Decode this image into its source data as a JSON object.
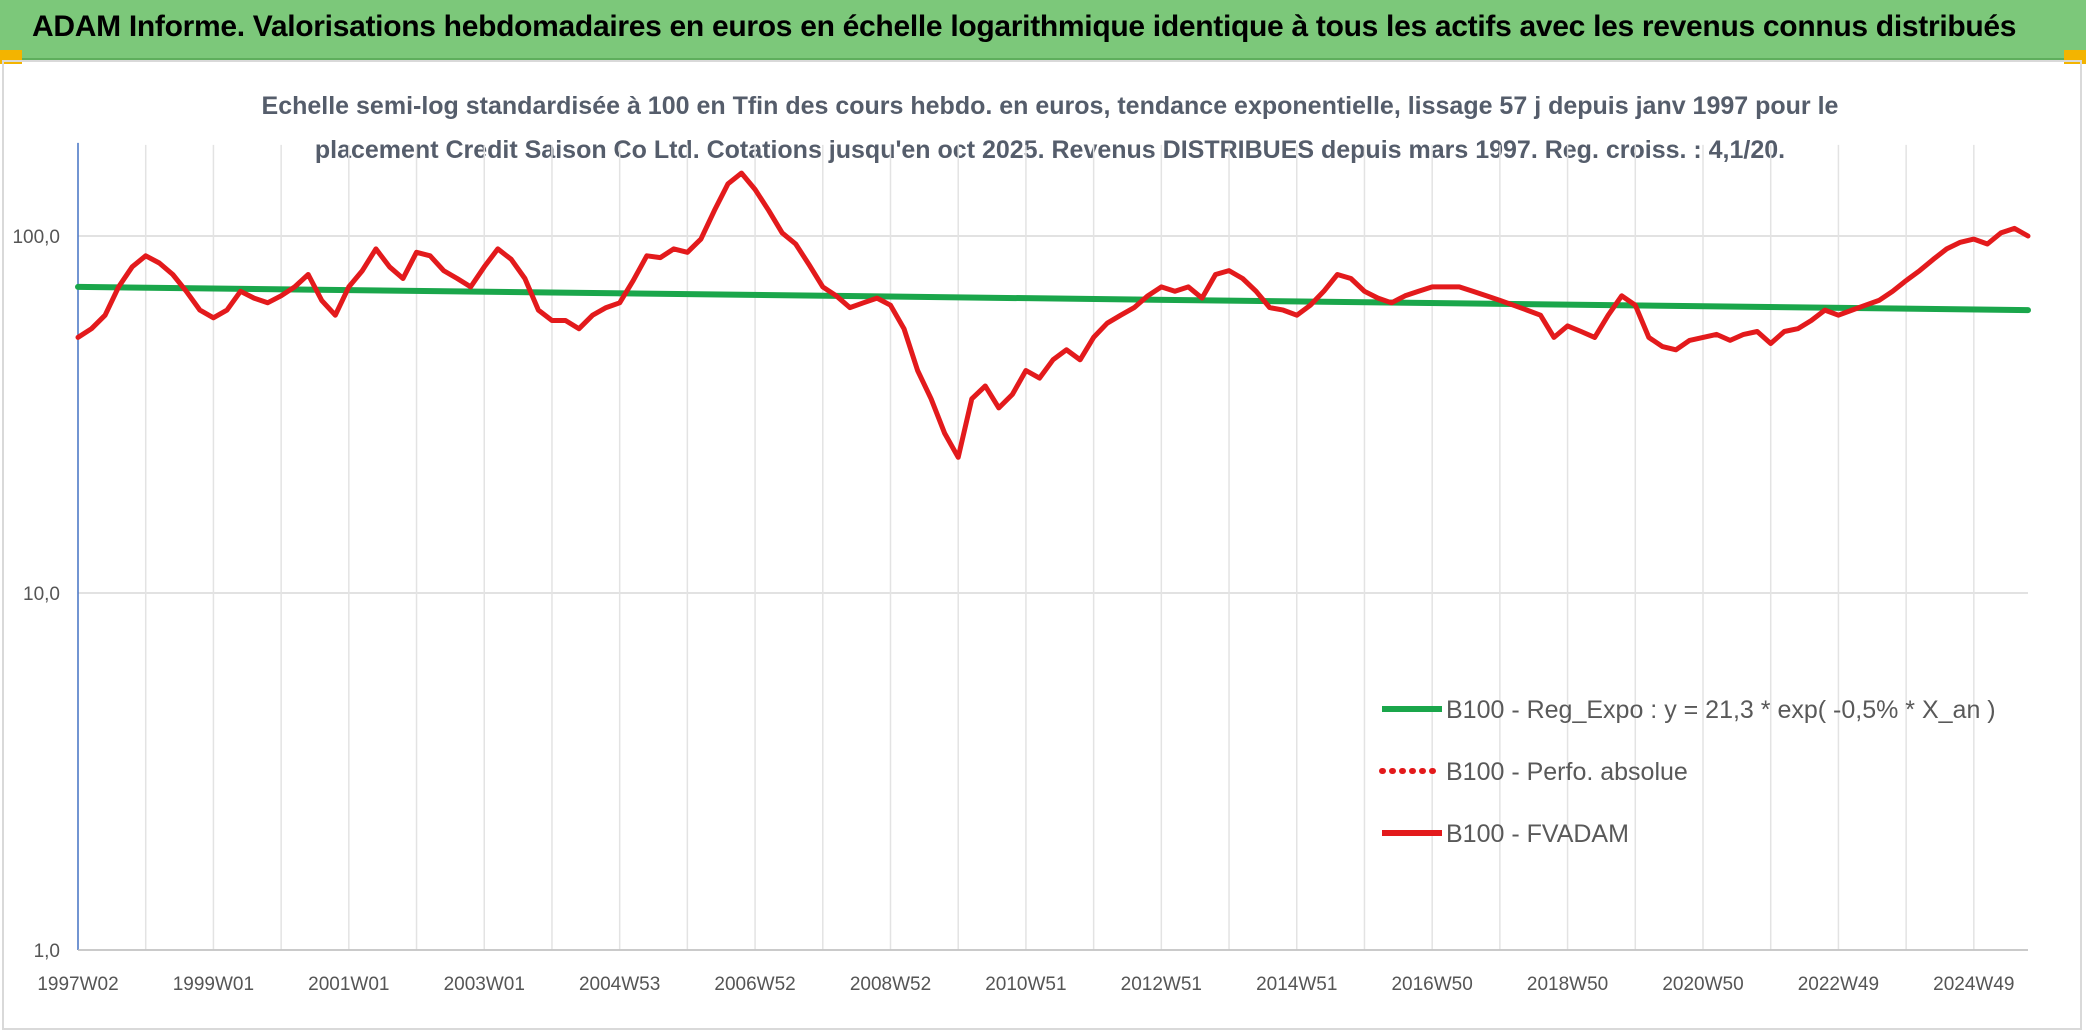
{
  "banner": {
    "title": "ADAM Informe. Valorisations hebdomadaires en euros en échelle logarithmique identique à tous les actifs avec les revenus connus distribués",
    "background": "#7cc87a"
  },
  "chart_data": {
    "type": "line",
    "scale": "log",
    "title_line1": "Echelle semi-log standardisée à 100 en Tfin des cours hebdo. en euros, tendance exponentielle, lissage 57 j depuis janv 1997 pour le",
    "title_line2": "placement Credit Saison Co Ltd. Cotations jusqu'en oct 2025. Revenus DISTRIBUES depuis mars 1997. Reg. croiss. : 4,1/20.",
    "x_start_year": 1997.0,
    "x_end_year": 2025.8,
    "ylim": [
      1,
      180
    ],
    "y_ticks": [
      {
        "value": 1,
        "label": "1,0"
      },
      {
        "value": 10,
        "label": "10,0"
      },
      {
        "value": 100,
        "label": "100,0"
      }
    ],
    "x_ticks": [
      {
        "year": 1997.0,
        "label": "1997W02"
      },
      {
        "year": 1999.0,
        "label": "1999W01"
      },
      {
        "year": 2001.0,
        "label": "2001W01"
      },
      {
        "year": 2003.0,
        "label": "2003W01"
      },
      {
        "year": 2005.0,
        "label": "2004W53"
      },
      {
        "year": 2007.0,
        "label": "2006W52"
      },
      {
        "year": 2009.0,
        "label": "2008W52"
      },
      {
        "year": 2011.0,
        "label": "2010W51"
      },
      {
        "year": 2013.0,
        "label": "2012W51"
      },
      {
        "year": 2015.0,
        "label": "2014W51"
      },
      {
        "year": 2017.0,
        "label": "2016W50"
      },
      {
        "year": 2019.0,
        "label": "2018W50"
      },
      {
        "year": 2021.0,
        "label": "2020W50"
      },
      {
        "year": 2023.0,
        "label": "2022W49"
      },
      {
        "year": 2025.0,
        "label": "2024W49"
      }
    ],
    "minor_gridlines_years": [
      1998.0,
      2000.0,
      2002.0,
      2004.0,
      2006.0,
      2008.0,
      2010.0,
      2012.0,
      2014.0,
      2016.0,
      2018.0,
      2020.0,
      2022.0,
      2024.0
    ],
    "series": [
      {
        "name": "B100 - Reg_Expo : y = 21,3 * exp( -0,5% *  X_an )",
        "color": "#1aa64b",
        "style": "solid",
        "points": [
          [
            1997.0,
            72
          ],
          [
            2025.8,
            62
          ]
        ]
      },
      {
        "name": "B100 - Perfo. absolue",
        "color": "#e31a1c",
        "style": "dotted",
        "points": []
      },
      {
        "name": "B100 - FVADAM",
        "color": "#e31a1c",
        "style": "solid",
        "points": [
          [
            1997.0,
            52
          ],
          [
            1997.2,
            55
          ],
          [
            1997.4,
            60
          ],
          [
            1997.6,
            72
          ],
          [
            1997.8,
            82
          ],
          [
            1998.0,
            88
          ],
          [
            1998.2,
            84
          ],
          [
            1998.4,
            78
          ],
          [
            1998.6,
            70
          ],
          [
            1998.8,
            62
          ],
          [
            1999.0,
            59
          ],
          [
            1999.2,
            62
          ],
          [
            1999.4,
            70
          ],
          [
            1999.6,
            67
          ],
          [
            1999.8,
            65
          ],
          [
            2000.0,
            68
          ],
          [
            2000.2,
            72
          ],
          [
            2000.4,
            78
          ],
          [
            2000.6,
            66
          ],
          [
            2000.8,
            60
          ],
          [
            2001.0,
            72
          ],
          [
            2001.2,
            80
          ],
          [
            2001.4,
            92
          ],
          [
            2001.6,
            82
          ],
          [
            2001.8,
            76
          ],
          [
            2002.0,
            90
          ],
          [
            2002.2,
            88
          ],
          [
            2002.4,
            80
          ],
          [
            2002.6,
            76
          ],
          [
            2002.8,
            72
          ],
          [
            2003.0,
            82
          ],
          [
            2003.2,
            92
          ],
          [
            2003.4,
            86
          ],
          [
            2003.6,
            76
          ],
          [
            2003.8,
            62
          ],
          [
            2004.0,
            58
          ],
          [
            2004.2,
            58
          ],
          [
            2004.4,
            55
          ],
          [
            2004.6,
            60
          ],
          [
            2004.8,
            63
          ],
          [
            2005.0,
            65
          ],
          [
            2005.2,
            75
          ],
          [
            2005.4,
            88
          ],
          [
            2005.6,
            87
          ],
          [
            2005.8,
            92
          ],
          [
            2006.0,
            90
          ],
          [
            2006.2,
            98
          ],
          [
            2006.4,
            118
          ],
          [
            2006.6,
            140
          ],
          [
            2006.8,
            150
          ],
          [
            2007.0,
            135
          ],
          [
            2007.2,
            118
          ],
          [
            2007.4,
            102
          ],
          [
            2007.6,
            95
          ],
          [
            2007.8,
            83
          ],
          [
            2008.0,
            72
          ],
          [
            2008.2,
            68
          ],
          [
            2008.4,
            63
          ],
          [
            2008.6,
            65
          ],
          [
            2008.8,
            67
          ],
          [
            2009.0,
            64
          ],
          [
            2009.2,
            55
          ],
          [
            2009.4,
            42
          ],
          [
            2009.6,
            35
          ],
          [
            2009.8,
            28
          ],
          [
            2010.0,
            24
          ],
          [
            2010.2,
            35
          ],
          [
            2010.4,
            38
          ],
          [
            2010.6,
            33
          ],
          [
            2010.8,
            36
          ],
          [
            2011.0,
            42
          ],
          [
            2011.2,
            40
          ],
          [
            2011.4,
            45
          ],
          [
            2011.6,
            48
          ],
          [
            2011.8,
            45
          ],
          [
            2012.0,
            52
          ],
          [
            2012.2,
            57
          ],
          [
            2012.4,
            60
          ],
          [
            2012.6,
            63
          ],
          [
            2012.8,
            68
          ],
          [
            2013.0,
            72
          ],
          [
            2013.2,
            70
          ],
          [
            2013.4,
            72
          ],
          [
            2013.6,
            67
          ],
          [
            2013.8,
            78
          ],
          [
            2014.0,
            80
          ],
          [
            2014.2,
            76
          ],
          [
            2014.4,
            70
          ],
          [
            2014.6,
            63
          ],
          [
            2014.8,
            62
          ],
          [
            2015.0,
            60
          ],
          [
            2015.2,
            64
          ],
          [
            2015.4,
            70
          ],
          [
            2015.6,
            78
          ],
          [
            2015.8,
            76
          ],
          [
            2016.0,
            70
          ],
          [
            2016.2,
            67
          ],
          [
            2016.4,
            65
          ],
          [
            2016.6,
            68
          ],
          [
            2016.8,
            70
          ],
          [
            2017.0,
            72
          ],
          [
            2017.2,
            72
          ],
          [
            2017.4,
            72
          ],
          [
            2017.6,
            70
          ],
          [
            2017.8,
            68
          ],
          [
            2018.0,
            66
          ],
          [
            2018.2,
            64
          ],
          [
            2018.4,
            62
          ],
          [
            2018.6,
            60
          ],
          [
            2018.8,
            52
          ],
          [
            2019.0,
            56
          ],
          [
            2019.2,
            54
          ],
          [
            2019.4,
            52
          ],
          [
            2019.6,
            60
          ],
          [
            2019.8,
            68
          ],
          [
            2020.0,
            64
          ],
          [
            2020.2,
            52
          ],
          [
            2020.4,
            49
          ],
          [
            2020.6,
            48
          ],
          [
            2020.8,
            51
          ],
          [
            2021.0,
            52
          ],
          [
            2021.2,
            53
          ],
          [
            2021.4,
            51
          ],
          [
            2021.6,
            53
          ],
          [
            2021.8,
            54
          ],
          [
            2022.0,
            50
          ],
          [
            2022.2,
            54
          ],
          [
            2022.4,
            55
          ],
          [
            2022.6,
            58
          ],
          [
            2022.8,
            62
          ],
          [
            2023.0,
            60
          ],
          [
            2023.2,
            62
          ],
          [
            2023.4,
            64
          ],
          [
            2023.6,
            66
          ],
          [
            2023.8,
            70
          ],
          [
            2024.0,
            75
          ],
          [
            2024.2,
            80
          ],
          [
            2024.4,
            86
          ],
          [
            2024.6,
            92
          ],
          [
            2024.8,
            96
          ],
          [
            2025.0,
            98
          ],
          [
            2025.2,
            95
          ],
          [
            2025.4,
            102
          ],
          [
            2025.6,
            105
          ],
          [
            2025.8,
            100
          ]
        ]
      }
    ],
    "legend_position": "bottom-right"
  }
}
